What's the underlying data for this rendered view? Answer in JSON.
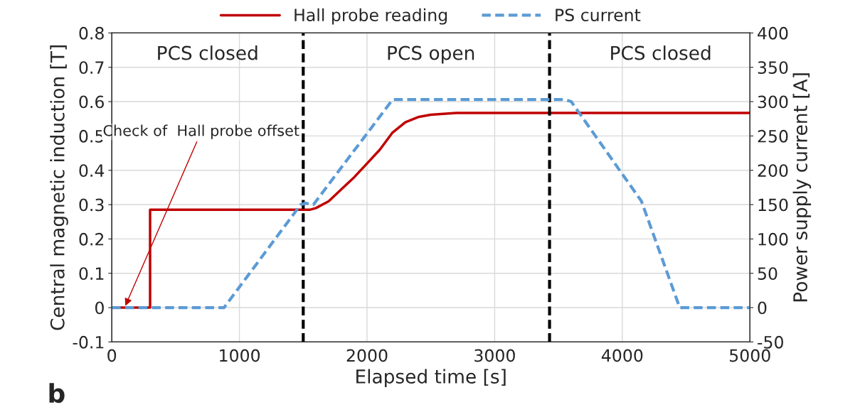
{
  "chart_data": {
    "type": "line",
    "xlabel": "Elapsed time [s]",
    "ylabel": "Central magnetic induction [T]",
    "y2label": "Power supply current [A]",
    "xlim": [
      0,
      5000
    ],
    "xticks": [
      0,
      1000,
      2000,
      3000,
      4000,
      5000
    ],
    "ylim": [
      -0.1,
      0.8
    ],
    "yticks": [
      -0.1,
      0,
      0.1,
      0.2,
      0.3,
      0.4,
      0.5,
      0.6,
      0.7,
      0.8
    ],
    "y2lim": [
      -50,
      400
    ],
    "y2ticks": [
      -50,
      0,
      50,
      100,
      150,
      200,
      250,
      300,
      350,
      400
    ],
    "grid": true,
    "legend": "top",
    "series": [
      {
        "name": "Hall probe reading",
        "color": "#c00000",
        "line_style": "solid",
        "x": [
          0,
          300,
          300,
          1550,
          1600,
          1700,
          1800,
          1900,
          2000,
          2100,
          2200,
          2300,
          2400,
          2500,
          2700,
          3000,
          5000
        ],
        "values": [
          0,
          0,
          0.285,
          0.285,
          0.29,
          0.31,
          0.345,
          0.38,
          0.42,
          0.46,
          0.51,
          0.54,
          0.555,
          0.562,
          0.567,
          0.567,
          0.567
        ]
      },
      {
        "name": "PS current",
        "color": "#5b9bd5",
        "line_style": "dashed",
        "axis": "y2",
        "x": [
          0,
          880,
          1480,
          1520,
          1580,
          2200,
          3550,
          3600,
          4150,
          4450,
          5000
        ],
        "values": [
          0,
          0,
          150,
          152,
          150,
          303,
          303,
          300,
          155,
          0,
          0
        ]
      }
    ],
    "ref_lines": [
      {
        "axis": "x",
        "value": 1500,
        "color": "#000000",
        "line_style": "dashed"
      },
      {
        "axis": "x",
        "value": 3430,
        "color": "#000000",
        "line_style": "dashed"
      }
    ],
    "annotations": [
      "PCS closed",
      "PCS open",
      "PCS closed",
      {
        "text": "Check of  Hall probe offset",
        "x": 100,
        "y": 0
      },
      "b"
    ]
  }
}
